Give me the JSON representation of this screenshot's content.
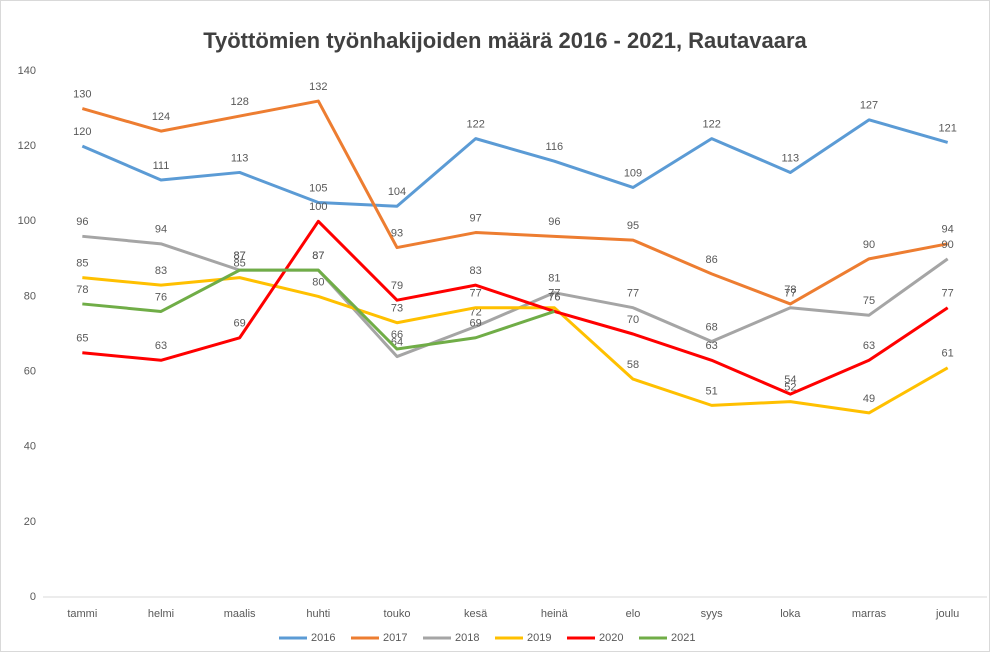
{
  "chart_data": {
    "type": "line",
    "title": "Työttömien työnhakijoiden määrä 2016 - 2021, Rautavaara",
    "categories": [
      "tammi",
      "helmi",
      "maalis",
      "huhti",
      "touko",
      "kesä",
      "heinä",
      "elo",
      "syys",
      "loka",
      "marras",
      "joulu"
    ],
    "series": [
      {
        "name": "2016",
        "color": "#5b9bd5",
        "values": [
          120,
          111,
          113,
          105,
          104,
          122,
          116,
          109,
          122,
          113,
          127,
          121
        ]
      },
      {
        "name": "2017",
        "color": "#ed7d31",
        "values": [
          130,
          124,
          128,
          132,
          93,
          97,
          96,
          95,
          86,
          78,
          90,
          94
        ]
      },
      {
        "name": "2018",
        "color": "#a5a5a5",
        "values": [
          96,
          94,
          87,
          87,
          64,
          72,
          81,
          77,
          68,
          77,
          75,
          90
        ]
      },
      {
        "name": "2019",
        "color": "#ffc000",
        "values": [
          85,
          83,
          85,
          80,
          73,
          77,
          77,
          58,
          51,
          52,
          49,
          61
        ]
      },
      {
        "name": "2020",
        "color": "#ff0000",
        "values": [
          65,
          63,
          69,
          100,
          79,
          83,
          76,
          70,
          63,
          54,
          63,
          77
        ]
      },
      {
        "name": "2021",
        "color": "#70ad47",
        "values": [
          78,
          76,
          87,
          87,
          66,
          69,
          76,
          null,
          null,
          null,
          null,
          null
        ]
      }
    ],
    "ylim": [
      0,
      140
    ],
    "yticks": [
      0,
      20,
      40,
      60,
      80,
      100,
      120,
      140
    ],
    "legend": "bottom"
  }
}
